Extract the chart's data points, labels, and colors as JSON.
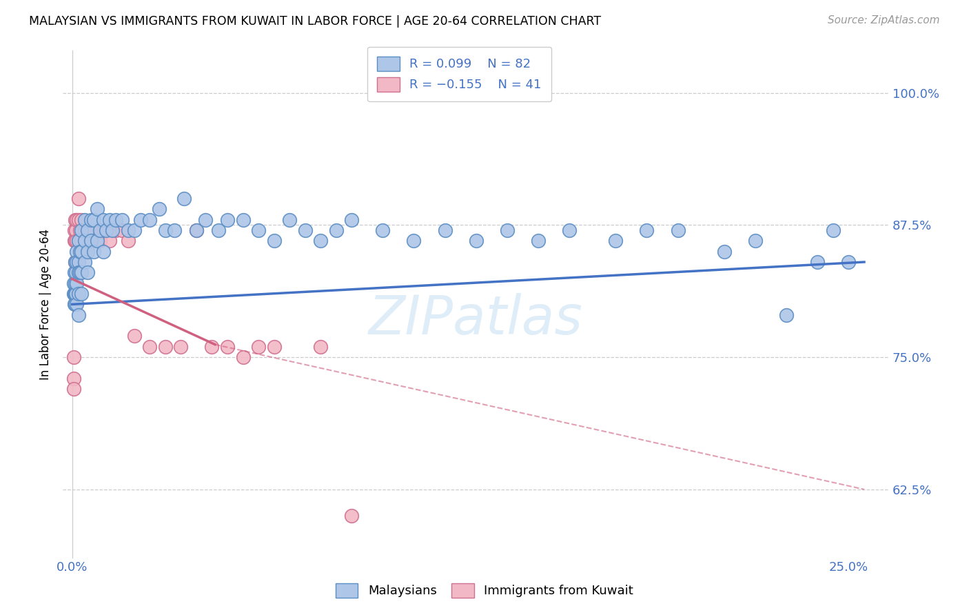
{
  "title": "MALAYSIAN VS IMMIGRANTS FROM KUWAIT IN LABOR FORCE | AGE 20-64 CORRELATION CHART",
  "source": "Source: ZipAtlas.com",
  "ylabel_label": "In Labor Force | Age 20-64",
  "x_tick_positions": [
    0.0,
    0.05,
    0.1,
    0.15,
    0.2,
    0.25
  ],
  "x_tick_labels": [
    "0.0%",
    "",
    "",
    "",
    "",
    "25.0%"
  ],
  "y_tick_positions": [
    0.625,
    0.75,
    0.875,
    1.0
  ],
  "y_tick_labels": [
    "62.5%",
    "75.0%",
    "87.5%",
    "100.0%"
  ],
  "xlim": [
    -0.003,
    0.263
  ],
  "ylim": [
    0.56,
    1.04
  ],
  "R_malaysian": 0.099,
  "N_malaysian": 82,
  "R_kuwait": -0.155,
  "N_kuwait": 41,
  "color_malaysian_fill": "#aec6e8",
  "color_malaysian_edge": "#5b8ec4",
  "color_kuwait_fill": "#f2b8c6",
  "color_kuwait_edge": "#d07090",
  "color_line_malaysian": "#4472c4",
  "color_line_kuwait": "#d06080",
  "color_tick": "#4472c4",
  "color_grid": "#cccccc",
  "malaysian_x": [
    0.0005,
    0.0005,
    0.0008,
    0.0008,
    0.0008,
    0.001,
    0.001,
    0.001,
    0.001,
    0.0012,
    0.0012,
    0.0015,
    0.0015,
    0.0015,
    0.0015,
    0.002,
    0.002,
    0.002,
    0.002,
    0.002,
    0.0025,
    0.0025,
    0.003,
    0.003,
    0.003,
    0.003,
    0.004,
    0.004,
    0.004,
    0.005,
    0.005,
    0.005,
    0.006,
    0.006,
    0.007,
    0.007,
    0.008,
    0.008,
    0.009,
    0.01,
    0.01,
    0.011,
    0.012,
    0.013,
    0.014,
    0.016,
    0.018,
    0.02,
    0.022,
    0.025,
    0.028,
    0.03,
    0.033,
    0.036,
    0.04,
    0.043,
    0.047,
    0.05,
    0.055,
    0.06,
    0.065,
    0.07,
    0.075,
    0.08,
    0.085,
    0.09,
    0.1,
    0.11,
    0.12,
    0.13,
    0.14,
    0.15,
    0.16,
    0.175,
    0.185,
    0.195,
    0.21,
    0.22,
    0.23,
    0.24,
    0.245,
    0.25
  ],
  "malaysian_y": [
    0.82,
    0.81,
    0.83,
    0.81,
    0.8,
    0.84,
    0.82,
    0.81,
    0.8,
    0.83,
    0.81,
    0.85,
    0.84,
    0.82,
    0.8,
    0.86,
    0.84,
    0.83,
    0.81,
    0.79,
    0.85,
    0.83,
    0.87,
    0.85,
    0.83,
    0.81,
    0.88,
    0.86,
    0.84,
    0.87,
    0.85,
    0.83,
    0.88,
    0.86,
    0.88,
    0.85,
    0.89,
    0.86,
    0.87,
    0.88,
    0.85,
    0.87,
    0.88,
    0.87,
    0.88,
    0.88,
    0.87,
    0.87,
    0.88,
    0.88,
    0.89,
    0.87,
    0.87,
    0.9,
    0.87,
    0.88,
    0.87,
    0.88,
    0.88,
    0.87,
    0.86,
    0.88,
    0.87,
    0.86,
    0.87,
    0.88,
    0.87,
    0.86,
    0.87,
    0.86,
    0.87,
    0.86,
    0.87,
    0.86,
    0.87,
    0.87,
    0.85,
    0.86,
    0.79,
    0.84,
    0.87,
    0.84
  ],
  "kuwait_x": [
    0.0005,
    0.0005,
    0.0005,
    0.0008,
    0.0008,
    0.001,
    0.001,
    0.001,
    0.0012,
    0.0015,
    0.0015,
    0.002,
    0.002,
    0.002,
    0.0025,
    0.003,
    0.003,
    0.004,
    0.004,
    0.005,
    0.006,
    0.007,
    0.008,
    0.009,
    0.01,
    0.012,
    0.014,
    0.016,
    0.018,
    0.02,
    0.025,
    0.03,
    0.035,
    0.04,
    0.045,
    0.05,
    0.055,
    0.06,
    0.065,
    0.08,
    0.09
  ],
  "kuwait_y": [
    0.75,
    0.73,
    0.72,
    0.87,
    0.86,
    0.88,
    0.86,
    0.84,
    0.87,
    0.88,
    0.86,
    0.9,
    0.88,
    0.86,
    0.87,
    0.88,
    0.86,
    0.87,
    0.85,
    0.87,
    0.86,
    0.87,
    0.86,
    0.86,
    0.87,
    0.86,
    0.87,
    0.87,
    0.86,
    0.77,
    0.76,
    0.76,
    0.76,
    0.87,
    0.76,
    0.76,
    0.75,
    0.76,
    0.76,
    0.76,
    0.6
  ],
  "trendline_blue_x0": 0.0,
  "trendline_blue_x1": 0.255,
  "trendline_blue_y0": 0.8,
  "trendline_blue_y1": 0.84,
  "trendline_pink_solid_x0": 0.0,
  "trendline_pink_solid_x1": 0.046,
  "trendline_pink_solid_y0": 0.824,
  "trendline_pink_solid_y1": 0.762,
  "trendline_pink_dash_x0": 0.046,
  "trendline_pink_dash_x1": 0.255,
  "trendline_pink_dash_y0": 0.762,
  "trendline_pink_dash_y1": 0.625
}
